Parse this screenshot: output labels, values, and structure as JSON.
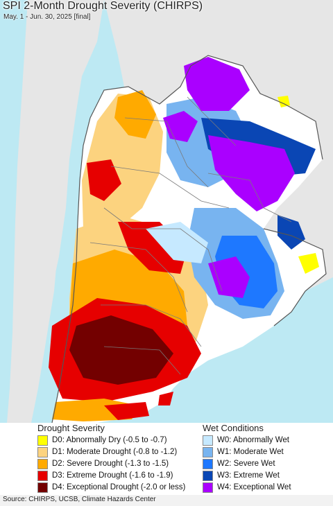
{
  "map": {
    "title": "SPI 2-Month Drought Severity (CHIRPS)",
    "subtitle": "May. 1 - Jun. 30, 2025 [final]",
    "colors": {
      "ocean": "#bde9f3",
      "outside_land": "#e6e6e6",
      "normal": "#ffffff",
      "border": "#7a7a7a"
    }
  },
  "legend": {
    "drought_heading": "Drought Severity",
    "wet_heading": "Wet Conditions",
    "drought": [
      {
        "label": "D0: Abnormally Dry (-0.5 to -0.7)",
        "color": "#ffff00"
      },
      {
        "label": "D1: Moderate Drought (-0.8 to -1.2)",
        "color": "#fcd37f"
      },
      {
        "label": "D2: Severe Drought (-1.3 to -1.5)",
        "color": "#ffaa00"
      },
      {
        "label": "D3: Extreme Drought (-1.6 to -1.9)",
        "color": "#e60000"
      },
      {
        "label": "D4: Exceptional Drought (-2.0 or less)",
        "color": "#730000"
      }
    ],
    "wet": [
      {
        "label": "W0: Abnormally Wet",
        "color": "#c6e9ff"
      },
      {
        "label": "W1: Moderate Wet",
        "color": "#78b4f0"
      },
      {
        "label": "W2: Severe Wet",
        "color": "#1e78ff"
      },
      {
        "label": "W3: Extreme Wet",
        "color": "#0a46b4"
      },
      {
        "label": "W4: Exceptional Wet",
        "color": "#aa00ff"
      }
    ]
  },
  "footer": {
    "source": "Source: CHIRPS, UCSB, Climate Hazards Center"
  }
}
